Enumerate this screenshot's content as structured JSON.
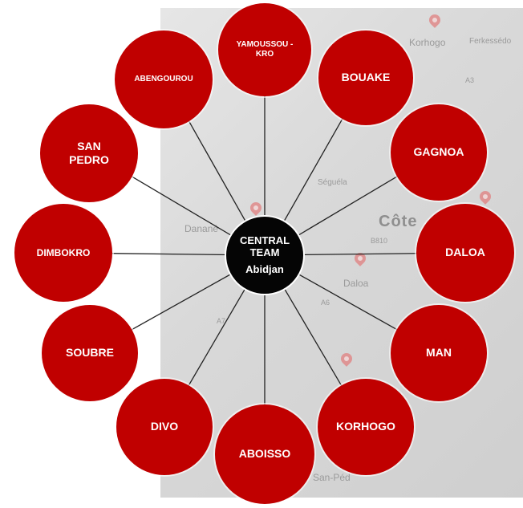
{
  "diagram": {
    "center": {
      "title": "CENTRAL TEAM",
      "subtitle": "Abidjan"
    },
    "nodes": [
      {
        "label": "YAMOUSSOU - KRO"
      },
      {
        "label": "BOUAKE"
      },
      {
        "label": "GAGNOA"
      },
      {
        "label": "DALOA"
      },
      {
        "label": "MAN"
      },
      {
        "label": "KORHOGO"
      },
      {
        "label": "ABOISSO"
      },
      {
        "label": "DIVO"
      },
      {
        "label": "SOUBRE"
      },
      {
        "label": "DIMBOKRO"
      },
      {
        "label": "SAN PEDRO"
      },
      {
        "label": "ABENGOUROU"
      }
    ]
  },
  "map": {
    "labels": [
      "Korhogo",
      "Ferkessédo",
      "Séguéla",
      "Côte",
      "Danané",
      "Daloa",
      "San-Péd"
    ],
    "road_codes": [
      "A3",
      "B810",
      "A6",
      "A7"
    ]
  },
  "colors": {
    "node_fill": "#c00000",
    "center_fill": "#050505",
    "spoke": "#222222"
  }
}
